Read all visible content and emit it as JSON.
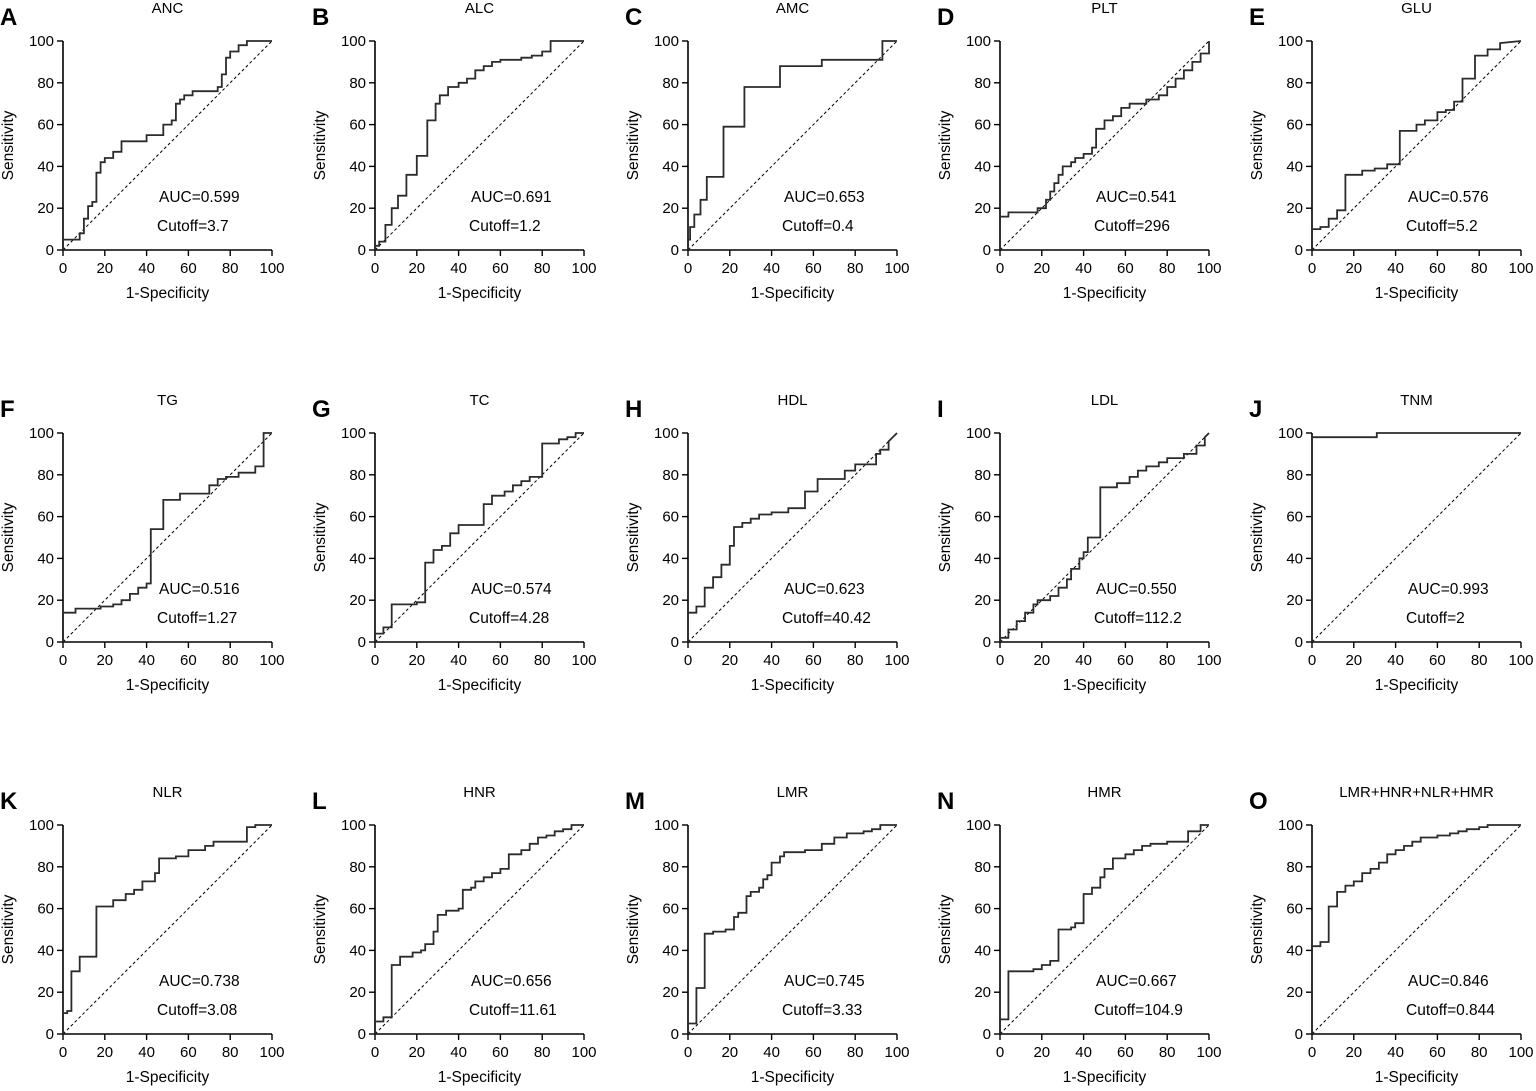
{
  "figure": {
    "axis_ticks": [
      "0",
      "20",
      "40",
      "60",
      "80",
      "100"
    ],
    "xlabel": "1-Specificity",
    "ylabel": "Sensitivity"
  },
  "chart_data": [
    {
      "type": "line",
      "letter": "A",
      "title": "ANC",
      "auc": "AUC=0.599",
      "cutoff": "Cutoff=3.7",
      "xlim": [
        0,
        100
      ],
      "ylim": [
        0,
        100
      ],
      "x": [
        0,
        0,
        8,
        8,
        10,
        10,
        12,
        12,
        14,
        14,
        16,
        16,
        18,
        18,
        20,
        20,
        24,
        24,
        28,
        28,
        32,
        32,
        40,
        40,
        48,
        48,
        52,
        52,
        54,
        54,
        56,
        56,
        58,
        58,
        62,
        62,
        68,
        68,
        74,
        74,
        76,
        76,
        78,
        78,
        80,
        80,
        84,
        84,
        88,
        88,
        100
      ],
      "y": [
        0,
        5,
        5,
        8,
        8,
        15,
        15,
        21,
        21,
        23,
        23,
        37,
        37,
        42,
        42,
        44,
        44,
        47,
        47,
        52,
        52,
        52,
        52,
        55,
        55,
        60,
        60,
        62,
        62,
        70,
        70,
        72,
        72,
        74,
        74,
        76,
        76,
        76,
        76,
        78,
        78,
        84,
        84,
        92,
        92,
        95,
        95,
        98,
        98,
        100,
        100
      ]
    },
    {
      "type": "line",
      "letter": "B",
      "title": "ALC",
      "auc": "AUC=0.691",
      "cutoff": "Cutoff=1.2",
      "xlim": [
        0,
        100
      ],
      "ylim": [
        0,
        100
      ],
      "x": [
        0,
        0,
        2,
        2,
        5,
        5,
        8,
        8,
        11,
        11,
        15,
        15,
        20,
        20,
        25,
        25,
        29,
        29,
        31,
        31,
        35,
        35,
        40,
        40,
        44,
        44,
        48,
        48,
        52,
        52,
        56,
        56,
        60,
        60,
        70,
        70,
        75,
        75,
        80,
        80,
        84,
        84,
        88,
        88,
        100
      ],
      "y": [
        0,
        2,
        2,
        4,
        4,
        12,
        12,
        20,
        20,
        26,
        26,
        36,
        36,
        45,
        45,
        62,
        62,
        70,
        70,
        74,
        74,
        78,
        78,
        80,
        80,
        82,
        82,
        86,
        86,
        88,
        88,
        90,
        90,
        91,
        91,
        92,
        92,
        93,
        93,
        95,
        95,
        100,
        100,
        100,
        100
      ]
    },
    {
      "type": "line",
      "letter": "C",
      "title": "AMC",
      "auc": "AUC=0.653",
      "cutoff": "Cutoff=0.4",
      "xlim": [
        0,
        100
      ],
      "ylim": [
        0,
        100
      ],
      "x": [
        0,
        0,
        1,
        1,
        3,
        3,
        6,
        6,
        9,
        9,
        17,
        17,
        27,
        27,
        44,
        44,
        64,
        64,
        93,
        93,
        100
      ],
      "y": [
        0,
        5,
        5,
        11,
        11,
        17,
        17,
        24,
        24,
        35,
        35,
        59,
        59,
        78,
        78,
        88,
        88,
        91,
        91,
        100,
        100
      ]
    },
    {
      "type": "line",
      "letter": "D",
      "title": "PLT",
      "auc": "AUC=0.541",
      "cutoff": "Cutoff=296",
      "xlim": [
        0,
        100
      ],
      "ylim": [
        0,
        100
      ],
      "x": [
        0,
        0,
        4,
        4,
        18,
        18,
        22,
        22,
        24,
        24,
        26,
        26,
        28,
        28,
        30,
        30,
        34,
        34,
        36,
        36,
        40,
        40,
        44,
        44,
        46,
        46,
        50,
        50,
        54,
        54,
        58,
        58,
        62,
        62,
        70,
        70,
        76,
        76,
        80,
        80,
        84,
        84,
        88,
        88,
        92,
        92,
        96,
        96,
        100,
        100
      ],
      "y": [
        0,
        16,
        16,
        18,
        18,
        20,
        20,
        24,
        24,
        28,
        28,
        32,
        32,
        36,
        36,
        40,
        40,
        42,
        42,
        44,
        44,
        46,
        46,
        49,
        49,
        58,
        58,
        62,
        62,
        64,
        64,
        68,
        68,
        70,
        70,
        72,
        72,
        74,
        74,
        78,
        78,
        82,
        82,
        86,
        86,
        90,
        90,
        94,
        94,
        100
      ]
    },
    {
      "type": "line",
      "letter": "E",
      "title": "GLU",
      "auc": "AUC=0.576",
      "cutoff": "Cutoff=5.2",
      "xlim": [
        0,
        100
      ],
      "ylim": [
        0,
        100
      ],
      "x": [
        0,
        0,
        4,
        4,
        8,
        8,
        12,
        12,
        16,
        16,
        24,
        24,
        30,
        30,
        36,
        36,
        42,
        42,
        50,
        50,
        54,
        54,
        60,
        60,
        64,
        64,
        68,
        68,
        72,
        72,
        78,
        78,
        84,
        84,
        90,
        90,
        100
      ],
      "y": [
        0,
        10,
        10,
        11,
        11,
        15,
        15,
        19,
        19,
        36,
        36,
        38,
        38,
        39,
        39,
        41,
        41,
        57,
        57,
        60,
        60,
        62,
        62,
        66,
        66,
        67,
        67,
        71,
        71,
        82,
        82,
        93,
        93,
        96,
        96,
        99,
        100
      ]
    },
    {
      "type": "line",
      "letter": "F",
      "title": "TG",
      "auc": "AUC=0.516",
      "cutoff": "Cutoff=1.27",
      "xlim": [
        0,
        100
      ],
      "ylim": [
        0,
        100
      ],
      "x": [
        0,
        0,
        6,
        6,
        18,
        18,
        24,
        24,
        28,
        28,
        32,
        32,
        36,
        36,
        40,
        40,
        42,
        42,
        48,
        48,
        56,
        56,
        70,
        70,
        74,
        74,
        78,
        78,
        84,
        84,
        92,
        92,
        96,
        96,
        100
      ],
      "y": [
        0,
        14,
        14,
        16,
        16,
        17,
        17,
        18,
        18,
        20,
        20,
        23,
        23,
        26,
        26,
        28,
        28,
        54,
        54,
        68,
        68,
        71,
        71,
        75,
        75,
        78,
        78,
        79,
        79,
        81,
        81,
        84,
        84,
        100,
        100
      ]
    },
    {
      "type": "line",
      "letter": "G",
      "title": "TC",
      "auc": "AUC=0.574",
      "cutoff": "Cutoff=4.28",
      "xlim": [
        0,
        100
      ],
      "ylim": [
        0,
        100
      ],
      "x": [
        0,
        0,
        4,
        4,
        8,
        8,
        20,
        20,
        24,
        24,
        28,
        28,
        32,
        32,
        36,
        36,
        40,
        40,
        52,
        52,
        56,
        56,
        62,
        62,
        66,
        66,
        70,
        70,
        74,
        74,
        78,
        78,
        80,
        80,
        88,
        88,
        92,
        92,
        96,
        96,
        100
      ],
      "y": [
        0,
        4,
        4,
        7,
        7,
        18,
        18,
        19,
        19,
        38,
        38,
        44,
        44,
        46,
        46,
        52,
        52,
        56,
        56,
        66,
        66,
        70,
        70,
        72,
        72,
        75,
        75,
        77,
        77,
        79,
        79,
        79,
        79,
        95,
        95,
        97,
        97,
        98,
        98,
        100,
        100
      ]
    },
    {
      "type": "line",
      "letter": "H",
      "title": "HDL",
      "auc": "AUC=0.623",
      "cutoff": "Cutoff=40.42",
      "xlim": [
        0,
        100
      ],
      "ylim": [
        0,
        100
      ],
      "x": [
        0,
        0,
        4,
        4,
        8,
        8,
        12,
        12,
        16,
        16,
        20,
        20,
        22,
        22,
        26,
        26,
        30,
        30,
        34,
        34,
        40,
        40,
        48,
        48,
        56,
        56,
        62,
        62,
        75,
        75,
        80,
        80,
        90,
        90,
        92,
        92,
        96,
        96,
        100
      ],
      "y": [
        0,
        14,
        14,
        17,
        17,
        26,
        26,
        31,
        31,
        37,
        37,
        46,
        46,
        55,
        55,
        57,
        57,
        59,
        59,
        61,
        61,
        62,
        62,
        64,
        64,
        72,
        72,
        78,
        78,
        82,
        82,
        85,
        85,
        90,
        90,
        92,
        92,
        96,
        100
      ]
    },
    {
      "type": "line",
      "letter": "I",
      "title": "LDL",
      "auc": "AUC=0.550",
      "cutoff": "Cutoff=112.2",
      "xlim": [
        0,
        100
      ],
      "ylim": [
        0,
        100
      ],
      "x": [
        0,
        0,
        4,
        4,
        8,
        8,
        12,
        12,
        16,
        16,
        18,
        18,
        24,
        24,
        28,
        28,
        32,
        32,
        34,
        34,
        38,
        38,
        40,
        40,
        42,
        42,
        48,
        48,
        56,
        56,
        62,
        62,
        66,
        66,
        70,
        70,
        76,
        76,
        80,
        80,
        88,
        88,
        94,
        94,
        98,
        98,
        100
      ],
      "y": [
        0,
        2,
        2,
        6,
        6,
        10,
        10,
        14,
        14,
        18,
        18,
        20,
        20,
        22,
        22,
        26,
        26,
        30,
        30,
        35,
        35,
        40,
        40,
        43,
        43,
        50,
        50,
        74,
        74,
        76,
        76,
        79,
        79,
        82,
        82,
        84,
        84,
        86,
        86,
        88,
        88,
        90,
        90,
        94,
        94,
        98,
        100
      ]
    },
    {
      "type": "line",
      "letter": "J",
      "title": "TNM",
      "auc": "AUC=0.993",
      "cutoff": "Cutoff=2",
      "xlim": [
        0,
        100
      ],
      "ylim": [
        0,
        100
      ],
      "x": [
        0,
        0,
        31,
        31,
        100
      ],
      "y": [
        0,
        98,
        98,
        100,
        100
      ]
    },
    {
      "type": "line",
      "letter": "K",
      "title": "NLR",
      "auc": "AUC=0.738",
      "cutoff": "Cutoff=3.08",
      "xlim": [
        0,
        100
      ],
      "ylim": [
        0,
        100
      ],
      "x": [
        0,
        0,
        2,
        2,
        4,
        4,
        8,
        8,
        16,
        16,
        24,
        24,
        30,
        30,
        34,
        34,
        38,
        38,
        44,
        44,
        46,
        46,
        54,
        54,
        60,
        60,
        68,
        68,
        72,
        72,
        80,
        80,
        88,
        88,
        92,
        92,
        100
      ],
      "y": [
        0,
        10,
        10,
        11,
        11,
        30,
        30,
        37,
        37,
        61,
        61,
        64,
        64,
        67,
        67,
        69,
        69,
        73,
        73,
        77,
        77,
        84,
        84,
        85,
        85,
        88,
        88,
        90,
        90,
        92,
        92,
        92,
        92,
        99,
        99,
        100,
        100
      ]
    },
    {
      "type": "line",
      "letter": "L",
      "title": "HNR",
      "auc": "AUC=0.656",
      "cutoff": "Cutoff=11.61",
      "xlim": [
        0,
        100
      ],
      "ylim": [
        0,
        100
      ],
      "x": [
        0,
        0,
        4,
        4,
        8,
        8,
        12,
        12,
        18,
        18,
        22,
        22,
        24,
        24,
        28,
        28,
        30,
        30,
        34,
        34,
        40,
        40,
        42,
        42,
        46,
        46,
        48,
        48,
        52,
        52,
        56,
        56,
        60,
        60,
        64,
        64,
        70,
        70,
        74,
        74,
        78,
        78,
        82,
        82,
        86,
        86,
        90,
        90,
        94,
        94,
        100
      ],
      "y": [
        0,
        6,
        6,
        8,
        8,
        33,
        33,
        37,
        37,
        39,
        39,
        40,
        40,
        43,
        43,
        49,
        49,
        57,
        57,
        59,
        59,
        60,
        60,
        69,
        69,
        70,
        70,
        73,
        73,
        75,
        75,
        77,
        77,
        79,
        79,
        86,
        86,
        88,
        88,
        91,
        91,
        94,
        94,
        95,
        95,
        97,
        97,
        98,
        98,
        100,
        100
      ]
    },
    {
      "type": "line",
      "letter": "M",
      "title": "LMR",
      "auc": "AUC=0.745",
      "cutoff": "Cutoff=3.33",
      "xlim": [
        0,
        100
      ],
      "ylim": [
        0,
        100
      ],
      "x": [
        0,
        0,
        4,
        4,
        8,
        8,
        12,
        12,
        18,
        18,
        22,
        22,
        24,
        24,
        28,
        28,
        30,
        30,
        34,
        34,
        36,
        36,
        38,
        38,
        40,
        40,
        44,
        44,
        46,
        46,
        52,
        52,
        56,
        56,
        64,
        64,
        70,
        70,
        76,
        76,
        84,
        84,
        88,
        88,
        92,
        92,
        100
      ],
      "y": [
        0,
        5,
        5,
        22,
        22,
        48,
        48,
        49,
        49,
        50,
        50,
        56,
        56,
        58,
        58,
        66,
        66,
        68,
        68,
        70,
        70,
        74,
        74,
        76,
        76,
        82,
        82,
        85,
        85,
        87,
        87,
        87,
        87,
        88,
        88,
        91,
        91,
        94,
        94,
        96,
        96,
        97,
        97,
        98,
        98,
        100,
        100
      ]
    },
    {
      "type": "line",
      "letter": "N",
      "title": "HMR",
      "auc": "AUC=0.667",
      "cutoff": "Cutoff=104.9",
      "xlim": [
        0,
        100
      ],
      "ylim": [
        0,
        100
      ],
      "x": [
        0,
        0,
        4,
        4,
        16,
        16,
        20,
        20,
        24,
        24,
        28,
        28,
        34,
        34,
        36,
        36,
        40,
        40,
        44,
        44,
        48,
        48,
        50,
        50,
        54,
        54,
        60,
        60,
        64,
        64,
        68,
        68,
        72,
        72,
        80,
        80,
        90,
        90,
        96,
        96,
        100
      ],
      "y": [
        0,
        7,
        7,
        30,
        30,
        31,
        31,
        33,
        33,
        35,
        35,
        50,
        50,
        51,
        51,
        53,
        53,
        67,
        67,
        70,
        70,
        75,
        75,
        79,
        79,
        84,
        84,
        86,
        86,
        88,
        88,
        90,
        90,
        91,
        91,
        92,
        92,
        97,
        97,
        100,
        100
      ]
    },
    {
      "type": "line",
      "letter": "O",
      "title": "LMR+HNR+NLR+HMR",
      "auc": "AUC=0.846",
      "cutoff": "Cutoff=0.844",
      "xlim": [
        0,
        100
      ],
      "ylim": [
        0,
        100
      ],
      "x": [
        0,
        0,
        4,
        4,
        8,
        8,
        12,
        12,
        16,
        16,
        20,
        20,
        24,
        24,
        28,
        28,
        32,
        32,
        36,
        36,
        40,
        40,
        44,
        44,
        48,
        48,
        52,
        52,
        60,
        60,
        66,
        66,
        70,
        70,
        74,
        74,
        80,
        80,
        84,
        84,
        100
      ],
      "y": [
        0,
        42,
        42,
        44,
        44,
        61,
        61,
        68,
        68,
        71,
        71,
        73,
        73,
        77,
        77,
        79,
        79,
        82,
        82,
        86,
        86,
        88,
        88,
        90,
        90,
        92,
        92,
        94,
        94,
        95,
        95,
        96,
        96,
        97,
        97,
        98,
        98,
        99,
        99,
        100,
        100
      ]
    }
  ]
}
